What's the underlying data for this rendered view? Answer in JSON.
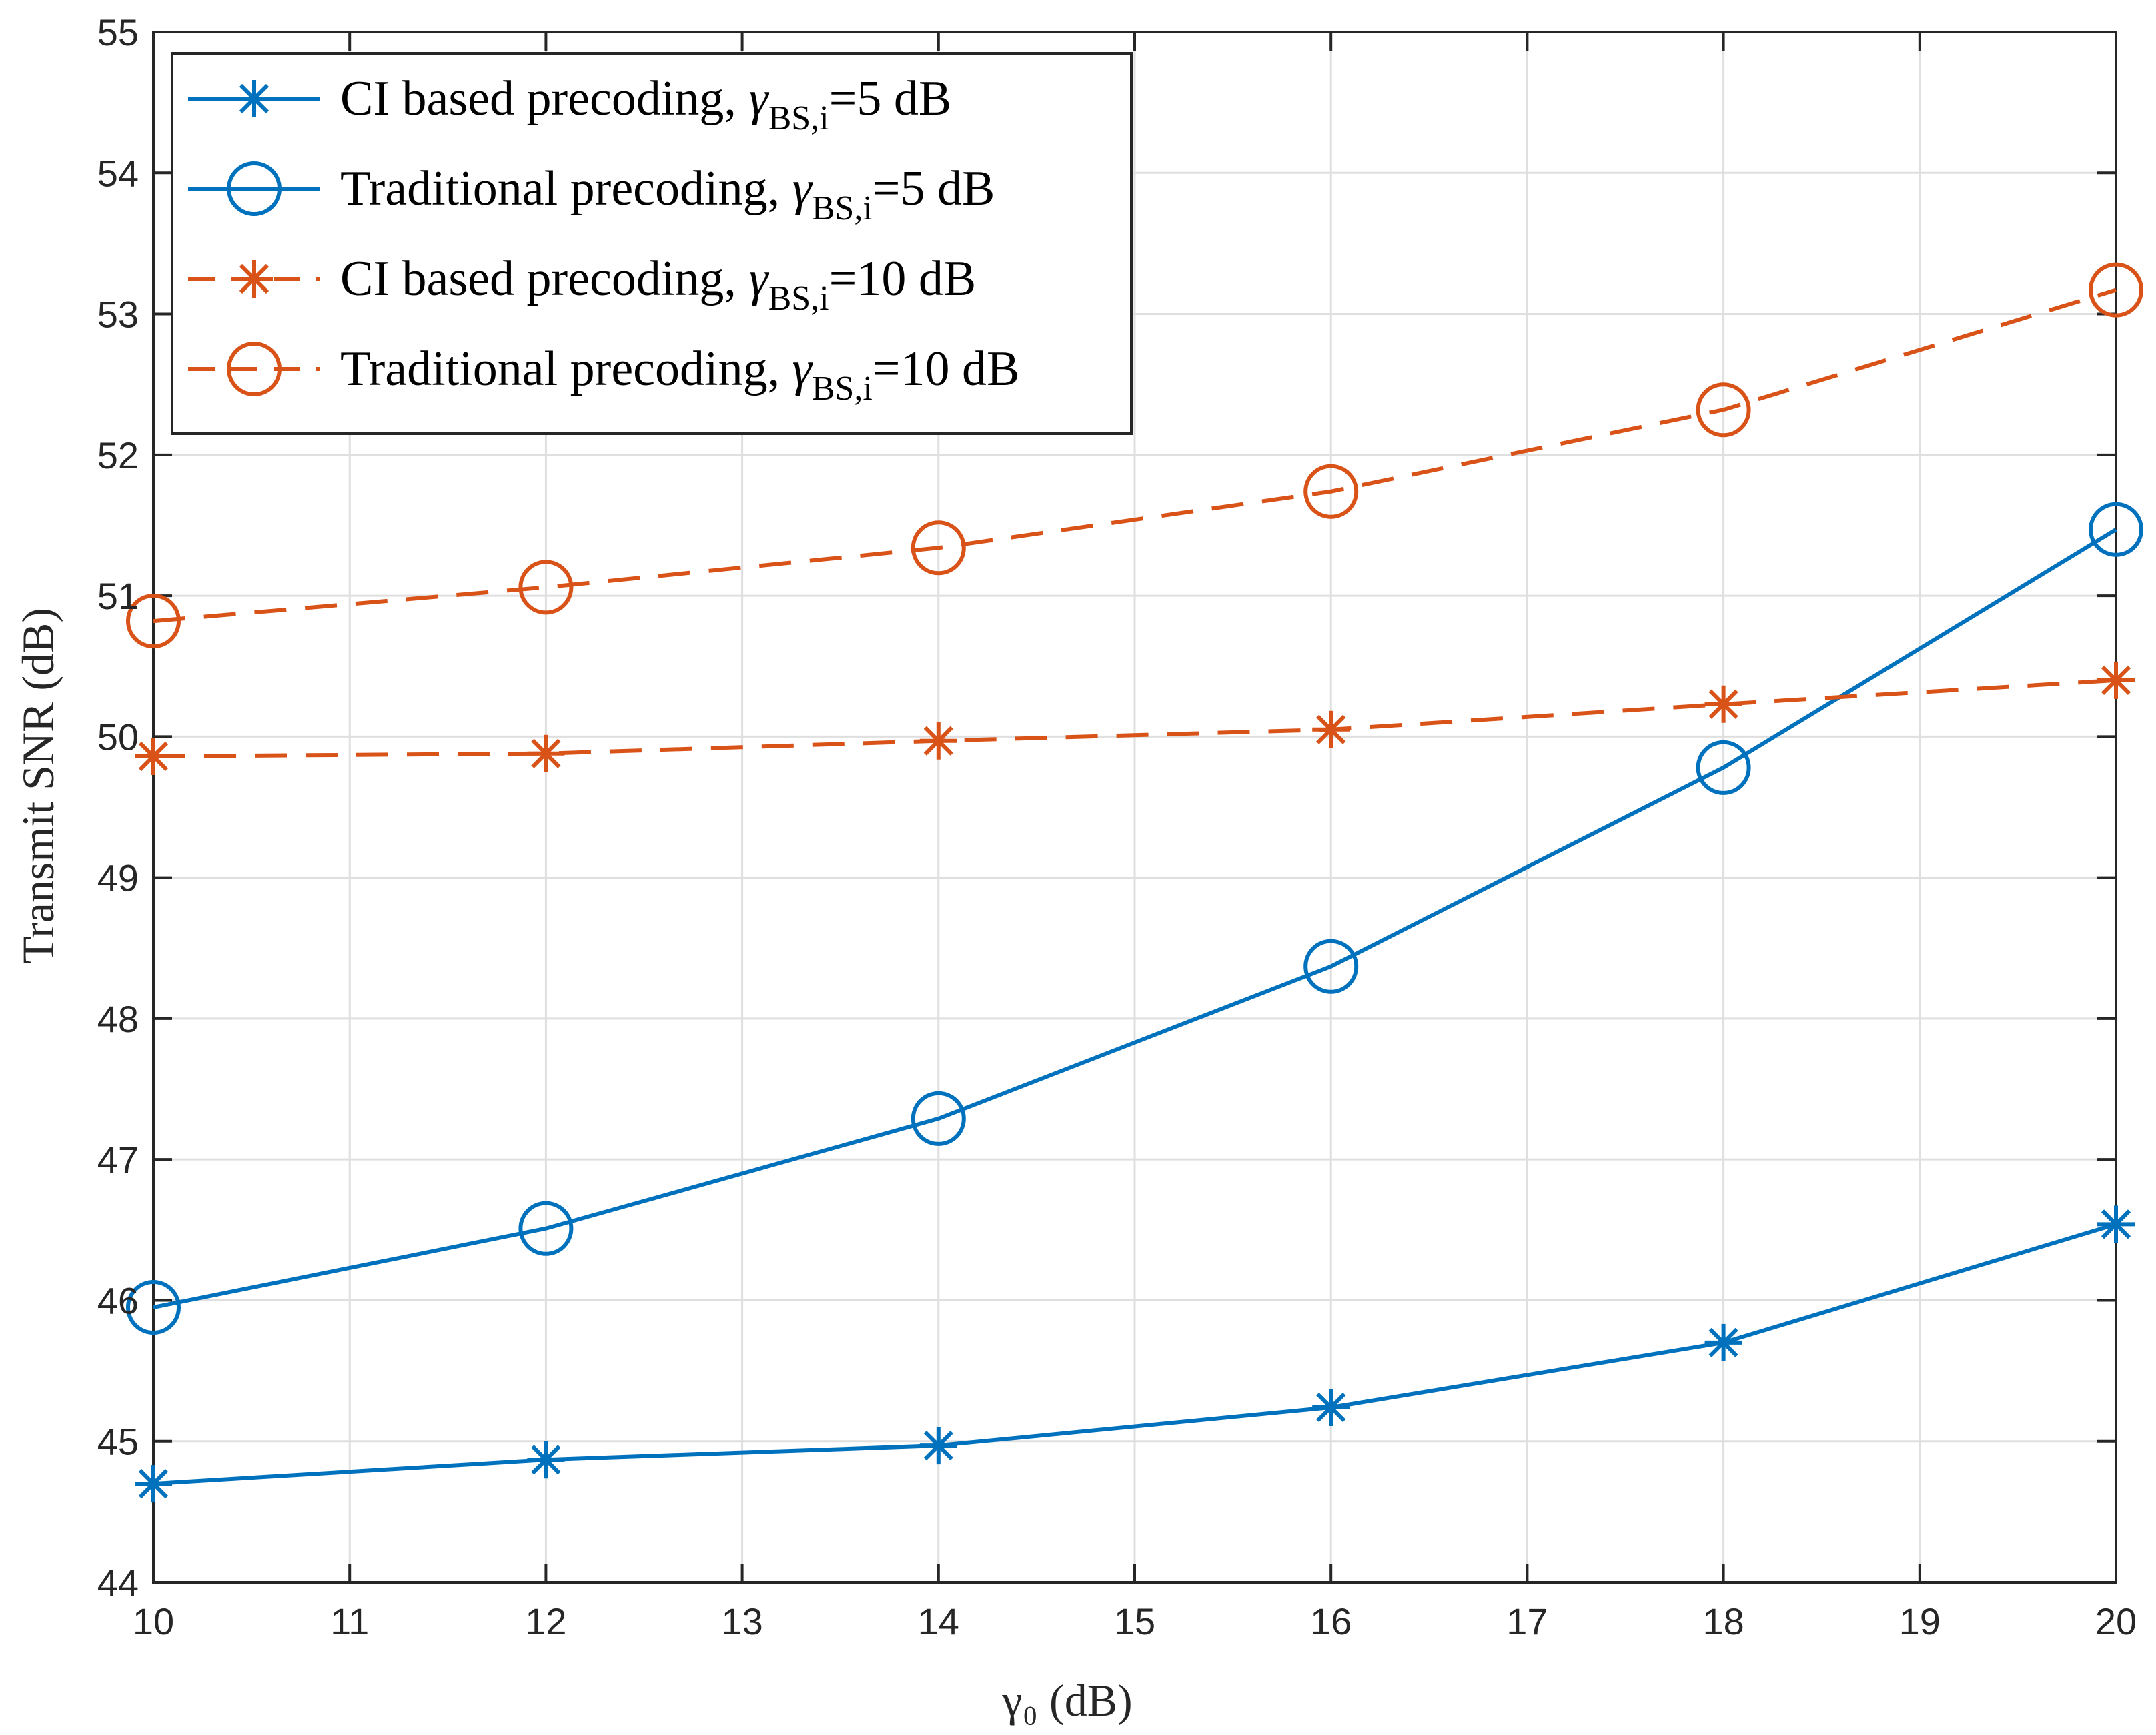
{
  "chart_data": {
    "type": "line",
    "title": "",
    "xlabel": "γ₀ (dB)",
    "ylabel": "Transmit SNR (dB)",
    "xlim": [
      10,
      20
    ],
    "ylim": [
      44,
      55
    ],
    "xticks": [
      "10",
      "11",
      "12",
      "13",
      "14",
      "15",
      "16",
      "17",
      "18",
      "19",
      "20"
    ],
    "yticks": [
      "44",
      "45",
      "46",
      "47",
      "48",
      "49",
      "50",
      "51",
      "52",
      "53",
      "54",
      "55"
    ],
    "grid": true,
    "legend_location": "top-left",
    "x": [
      10,
      12,
      14,
      16,
      18,
      20
    ],
    "series": [
      {
        "name": "CI based precoding, γBS,i=5 dB",
        "legend_prefix": "CI based precoding, ",
        "legend_gamma": "γ",
        "legend_subscript": "BS,i",
        "legend_suffix": "=5 dB",
        "values": [
          44.7,
          44.87,
          44.97,
          45.24,
          45.7,
          46.54
        ],
        "color": "#0072BD",
        "line_style": "solid",
        "marker": "asterisk"
      },
      {
        "name": "Traditional precoding, γBS,i=5 dB",
        "legend_prefix": "Traditional precoding, ",
        "legend_gamma": "γ",
        "legend_subscript": "BS,i",
        "legend_suffix": "=5 dB",
        "values": [
          45.95,
          46.51,
          47.29,
          48.37,
          49.78,
          51.47
        ],
        "color": "#0072BD",
        "line_style": "solid",
        "marker": "circle"
      },
      {
        "name": "CI based precoding, γBS,i=10 dB",
        "legend_prefix": "CI based precoding, ",
        "legend_gamma": "γ",
        "legend_subscript": "BS,i",
        "legend_suffix": "=10 dB",
        "values": [
          49.86,
          49.88,
          49.97,
          50.05,
          50.23,
          50.4
        ],
        "color": "#D95319",
        "line_style": "dashed",
        "marker": "asterisk"
      },
      {
        "name": "Traditional precoding, γBS,i=10 dB",
        "legend_prefix": "Traditional precoding, ",
        "legend_gamma": "γ",
        "legend_subscript": "BS,i",
        "legend_suffix": "=10 dB",
        "values": [
          50.82,
          51.06,
          51.34,
          51.74,
          52.32,
          53.17
        ],
        "color": "#D95319",
        "line_style": "dashed",
        "marker": "circle"
      }
    ]
  }
}
